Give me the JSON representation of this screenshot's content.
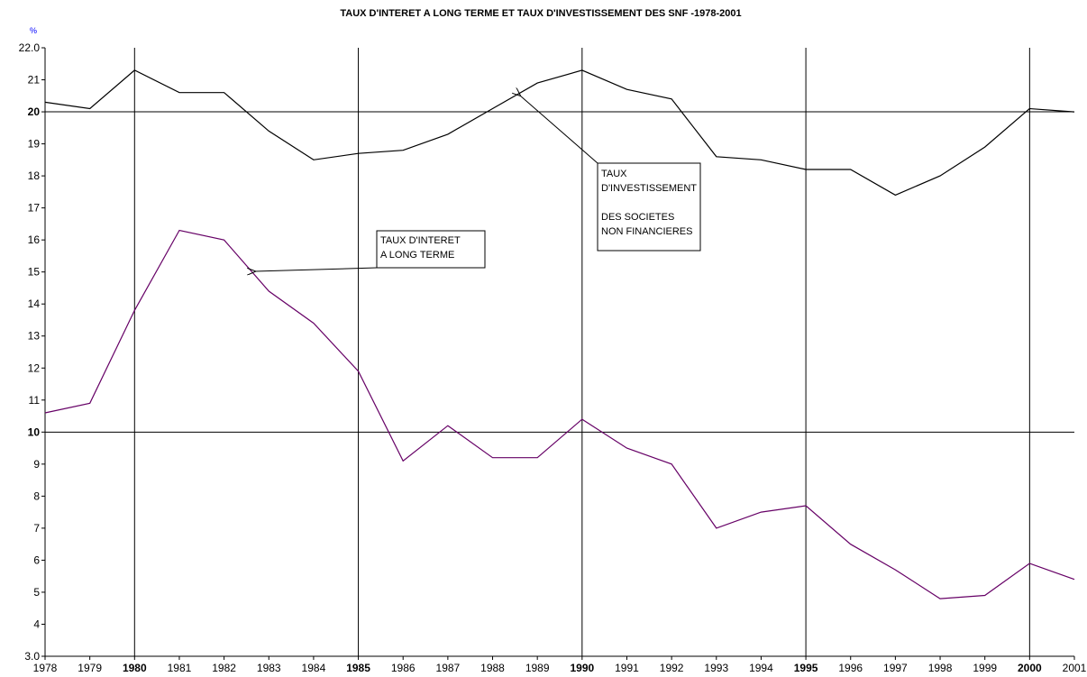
{
  "chart_data": {
    "type": "line",
    "title": "TAUX D'INTERET A LONG TERME ET TAUX D'INVESTISSEMENT DES SNF -1978-2001",
    "y_label": "%",
    "x": [
      1978,
      1979,
      1980,
      1981,
      1982,
      1983,
      1984,
      1985,
      1986,
      1987,
      1988,
      1989,
      1990,
      1991,
      1992,
      1993,
      1994,
      1995,
      1996,
      1997,
      1998,
      1999,
      2000,
      2001
    ],
    "series": [
      {
        "name": "TAUX D'INVESTISSEMENT DES SOCIETES NON FINANCIERES",
        "color": "#000000",
        "values": [
          20.3,
          20.1,
          21.3,
          20.6,
          20.6,
          19.4,
          18.5,
          18.7,
          18.8,
          19.3,
          20.1,
          20.9,
          21.3,
          20.7,
          20.4,
          18.6,
          18.5,
          18.2,
          18.2,
          17.4,
          18.0,
          18.9,
          20.1,
          20.0
        ]
      },
      {
        "name": "TAUX D'INTERET A LONG TERME",
        "color": "#660066",
        "values": [
          10.6,
          10.9,
          13.8,
          16.3,
          16.0,
          14.4,
          13.4,
          11.9,
          9.1,
          10.2,
          9.2,
          9.2,
          10.4,
          9.5,
          9.0,
          7.0,
          7.5,
          7.7,
          6.5,
          5.7,
          4.8,
          4.9,
          5.9,
          5.4
        ]
      }
    ],
    "xlim": [
      1978,
      2001
    ],
    "xticks": [
      1978,
      1979,
      1980,
      1981,
      1982,
      1983,
      1984,
      1985,
      1986,
      1987,
      1988,
      1989,
      1990,
      1991,
      1992,
      1993,
      1994,
      1995,
      1996,
      1997,
      1998,
      1999,
      2000,
      2001
    ],
    "ylim": [
      3,
      22
    ],
    "yticks": [
      {
        "value": 22,
        "label": "22.0"
      },
      21,
      20,
      19,
      18,
      17,
      16,
      15,
      14,
      13,
      12,
      11,
      10,
      9,
      8,
      7,
      6,
      5,
      4,
      {
        "value": 3,
        "label": "3.0"
      }
    ],
    "bold_xticks": [
      1980,
      1985,
      1990,
      1995,
      2000
    ],
    "bold_yticks": [
      10,
      20
    ],
    "annotations": [
      {
        "lines": [
          "TAUX D'INTERET",
          "A LONG TERME"
        ]
      },
      {
        "lines": [
          "TAUX",
          "D'INVESTISSEMENT",
          "DES SOCIETES",
          "NON FINANCIERES"
        ]
      }
    ]
  }
}
